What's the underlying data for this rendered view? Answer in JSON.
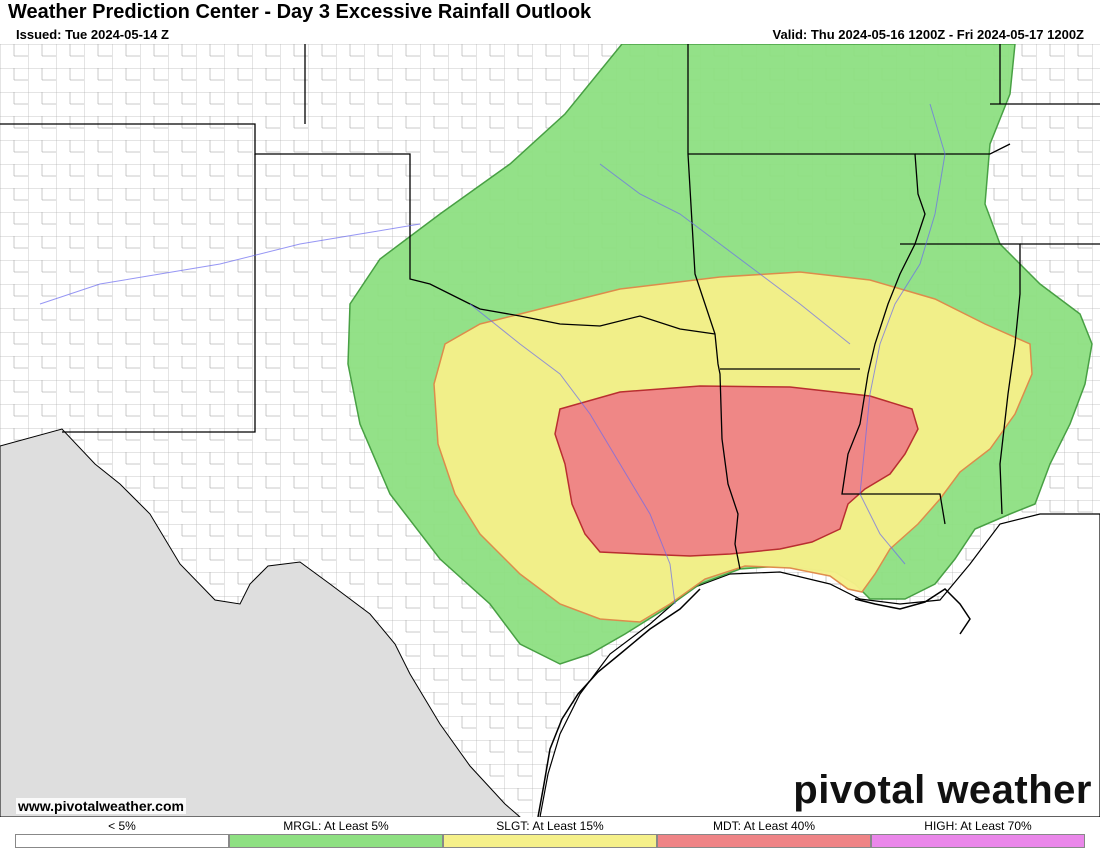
{
  "header": {
    "title": "Weather Prediction Center - Day 3 Excessive Rainfall Outlook",
    "issued": "Issued: Tue 2024-05-14 Z",
    "valid": "Valid: Thu 2024-05-16 1200Z - Fri 2024-05-17 1200Z"
  },
  "footer": {
    "credit": "www.pivotalweather.com",
    "logo": "pivotal weather"
  },
  "legend": [
    {
      "label": "< 5%",
      "color": "#ffffff"
    },
    {
      "label": "MRGL: At Least 5%",
      "color": "#8ee082"
    },
    {
      "label": "SLGT: At Least 15%",
      "color": "#f5f08a"
    },
    {
      "label": "MDT: At Least 40%",
      "color": "#ef8486"
    },
    {
      "label": "HIGH: At Least 70%",
      "color": "#ea87ea"
    }
  ],
  "map_colors": {
    "mexico": "#dedede",
    "gulf": "#ffffff",
    "state_line": "#000000",
    "county_line": "#8a8a8a",
    "river": "#6a6af0"
  }
}
